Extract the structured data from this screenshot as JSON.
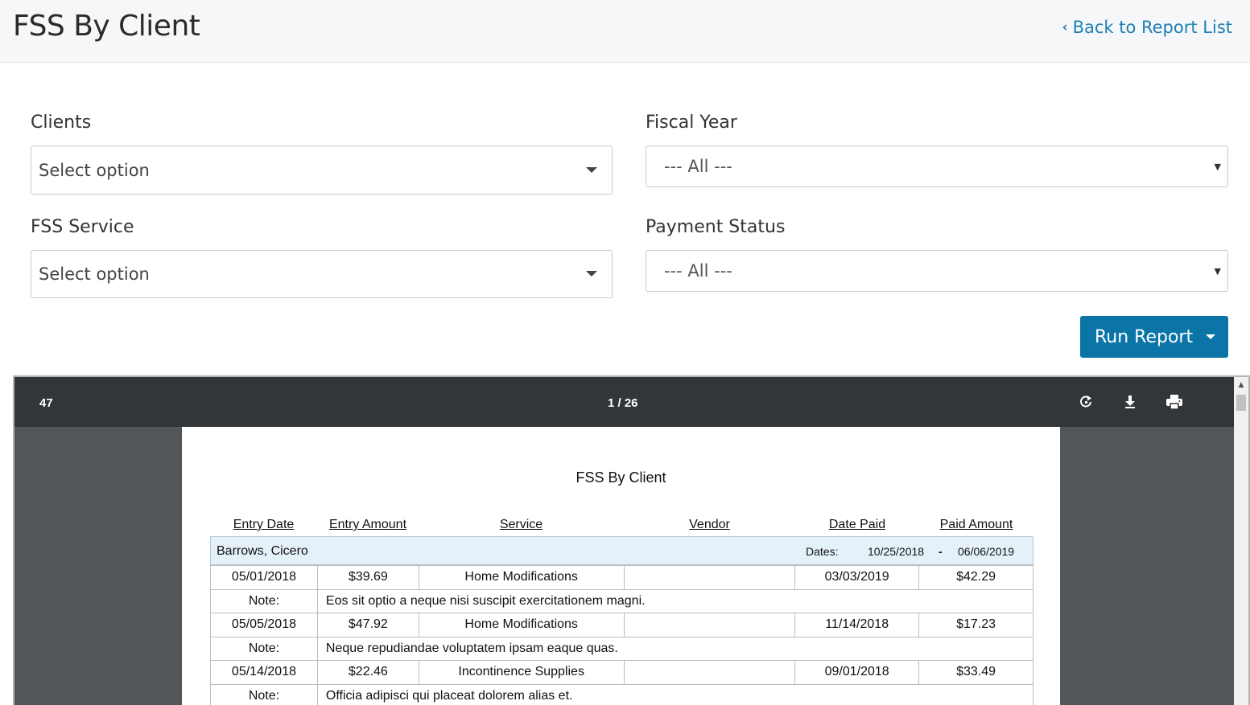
{
  "header": {
    "title": "FSS By Client",
    "back_link": "Back to Report List"
  },
  "filters": {
    "clients": {
      "label": "Clients",
      "value": "Select option"
    },
    "fiscal_year": {
      "label": "Fiscal Year",
      "value": "--- All ---"
    },
    "fss_service": {
      "label": "FSS Service",
      "value": "Select option"
    },
    "payment_status": {
      "label": "Payment Status",
      "value": "--- All ---"
    }
  },
  "run_button": {
    "label": "Run Report"
  },
  "viewer": {
    "doc_title": "47",
    "page_indicator": "1 / 26",
    "icons": [
      "rotate-icon",
      "download-icon",
      "print-icon"
    ]
  },
  "report": {
    "title": "FSS By Client",
    "columns": [
      "Entry Date",
      "Entry Amount",
      "Service",
      "Vendor",
      "Date Paid",
      "Paid Amount"
    ],
    "group": {
      "client": "Barrows, Cicero",
      "dates_label": "Dates:",
      "start": "10/25/2018",
      "sep": "-",
      "end": "06/06/2019"
    },
    "note_label": "Note:",
    "entries": [
      {
        "entry_date": "05/01/2018",
        "entry_amount": "$39.69",
        "service": "Home Modifications",
        "vendor": "",
        "date_paid": "03/03/2019",
        "paid_amount": "$42.29",
        "note": "Eos sit optio a neque nisi suscipit exercitationem magni."
      },
      {
        "entry_date": "05/05/2018",
        "entry_amount": "$47.92",
        "service": "Home Modifications",
        "vendor": "",
        "date_paid": "11/14/2018",
        "paid_amount": "$17.23",
        "note": "Neque repudiandae voluptatem ipsam eaque quas."
      },
      {
        "entry_date": "05/14/2018",
        "entry_amount": "$22.46",
        "service": "Incontinence Supplies",
        "vendor": "",
        "date_paid": "09/01/2018",
        "paid_amount": "$33.49",
        "note": "Officia adipisci qui placeat dolorem alias et."
      }
    ]
  }
}
